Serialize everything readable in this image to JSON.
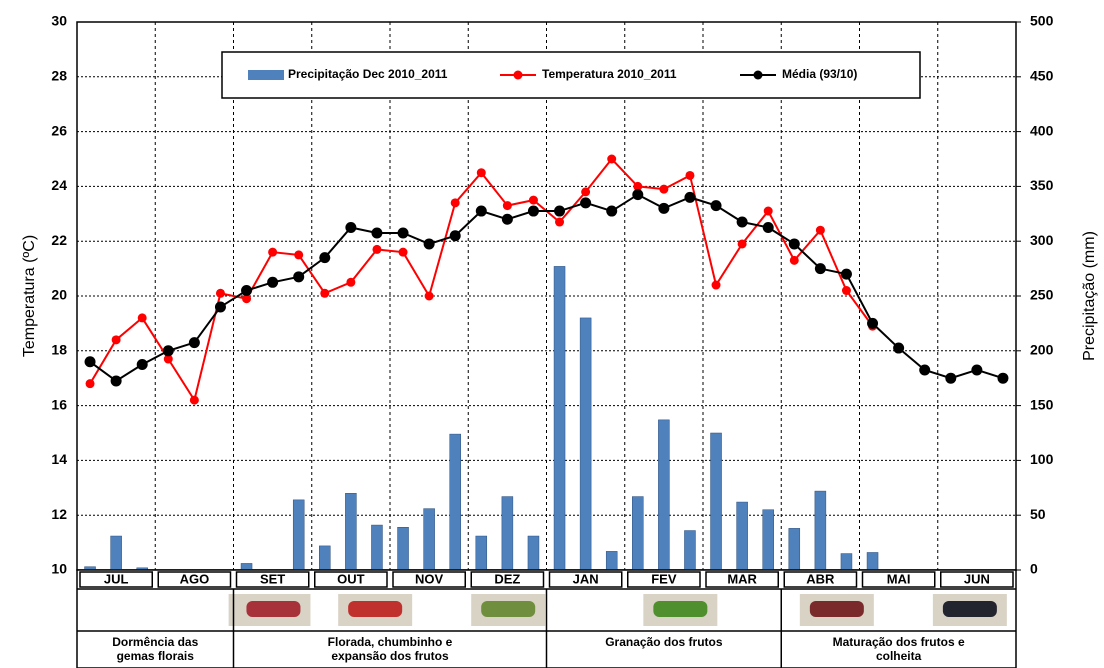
{
  "chart_data": {
    "type": "combo",
    "y_label": "Temperatura (ºC)",
    "y2_label": "Precipitação (mm)",
    "categories": [
      null,
      null,
      null,
      null,
      null,
      null,
      null,
      null,
      null,
      null,
      null,
      null,
      null,
      null,
      null,
      null,
      null,
      null,
      null,
      null,
      null,
      null,
      null,
      null,
      null,
      null,
      null,
      null,
      null,
      null,
      null,
      null,
      null,
      null,
      null,
      null
    ],
    "series": [
      {
        "name": "Precipitação Dec 2010_2011",
        "type": "bar",
        "axis": "y2",
        "color": "#4f81bd",
        "values": [
          3,
          31,
          2,
          0,
          0,
          0,
          6,
          0,
          64,
          22,
          70,
          41,
          39,
          56,
          124,
          31,
          67,
          31,
          277,
          230,
          17,
          67,
          137,
          36,
          125,
          62,
          55,
          38,
          72,
          15,
          16,
          0,
          0,
          0,
          0,
          0
        ]
      },
      {
        "name": "Temperatura 2010_2011",
        "type": "line",
        "color": "#ff0000",
        "values": [
          16.8,
          18.4,
          19.2,
          17.7,
          16.2,
          20.1,
          19.9,
          21.6,
          21.5,
          20.1,
          20.5,
          21.7,
          21.6,
          20.0,
          23.4,
          24.5,
          23.3,
          23.5,
          22.7,
          23.8,
          25.0,
          24.0,
          23.9,
          24.4,
          20.4,
          21.9,
          23.1,
          21.3,
          22.4,
          20.2,
          18.9,
          null,
          null,
          null,
          null,
          null
        ]
      },
      {
        "name": "Média (93/10)",
        "type": "line",
        "color": "#000000",
        "values": [
          17.6,
          16.9,
          17.5,
          18.0,
          18.3,
          19.6,
          20.2,
          20.5,
          20.7,
          21.4,
          22.5,
          22.3,
          22.3,
          21.9,
          22.2,
          23.1,
          22.8,
          23.1,
          23.1,
          23.4,
          23.1,
          23.7,
          23.2,
          23.6,
          23.3,
          22.7,
          22.5,
          21.9,
          21.0,
          20.8,
          19.0,
          18.1,
          17.3,
          17.0,
          17.3,
          17.0
        ]
      }
    ],
    "ylim": [
      10,
      30
    ],
    "yticks": [
      10,
      12,
      14,
      16,
      18,
      20,
      22,
      24,
      26,
      28,
      30
    ],
    "y2lim": [
      0,
      500
    ],
    "y2ticks": [
      0,
      50,
      100,
      150,
      200,
      250,
      300,
      350,
      400,
      450,
      500
    ],
    "grid": true,
    "legend": "top"
  },
  "phenology": {
    "months": [
      "JUL",
      "AGO",
      "SET",
      "OUT",
      "NOV",
      "DEZ",
      "JAN",
      "FEV",
      "MAR",
      "ABR",
      "MAI",
      "JUN"
    ],
    "stages": [
      [
        "Dormência das",
        "gemas florais"
      ],
      [
        "Florada, chumbinho e",
        "expansão dos frutos"
      ],
      [
        "Granação dos frutos"
      ],
      [
        "Maturação dos frutos e",
        "colheita"
      ]
    ]
  }
}
